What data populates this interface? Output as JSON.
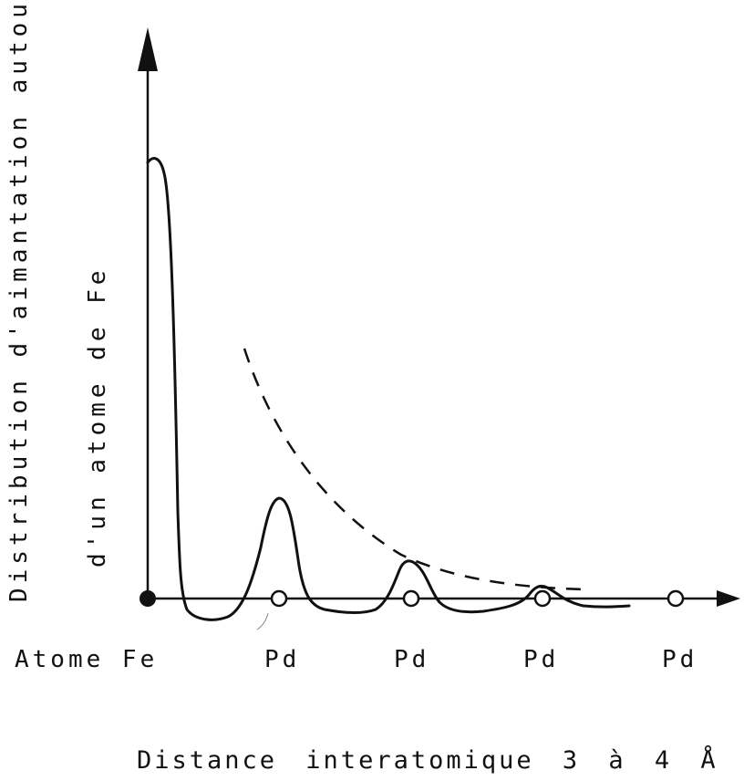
{
  "diagram": {
    "y_axis_label_line1": "Distribution d'aimantation autour",
    "y_axis_label_line2": "d'un atome de Fe",
    "x_axis_label": "Distance interatomique 3 à 4 Å",
    "sites": [
      {
        "label": "Atome Fe",
        "kind": "filled"
      },
      {
        "label": "Pd",
        "kind": "open"
      },
      {
        "label": "Pd",
        "kind": "open"
      },
      {
        "label": "Pd",
        "kind": "open"
      },
      {
        "label": "Pd",
        "kind": "open"
      }
    ],
    "colors": {
      "ink": "#111111",
      "background": "#ffffff"
    }
  }
}
